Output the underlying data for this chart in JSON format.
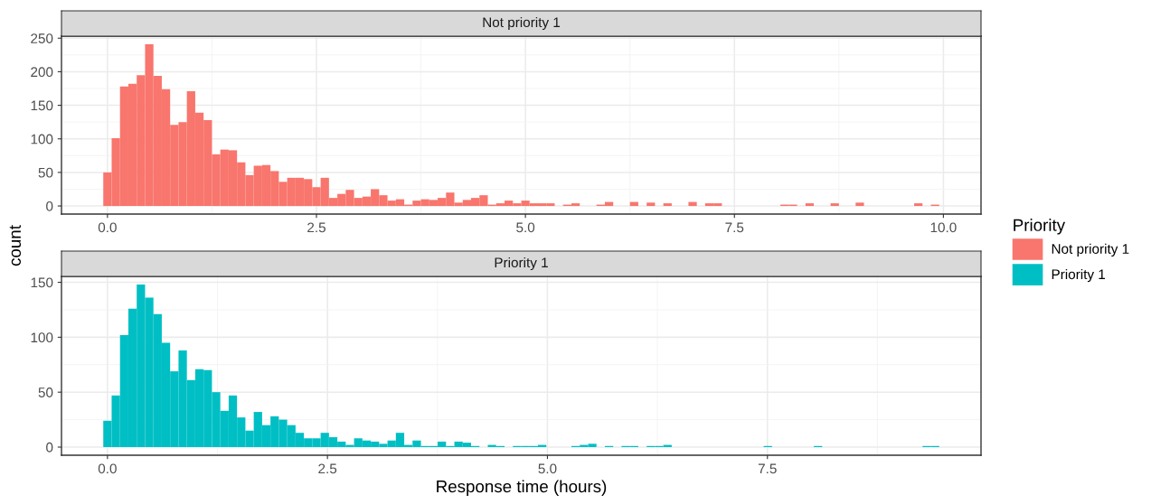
{
  "chart_data": [
    {
      "type": "histogram",
      "title": "Not priority 1",
      "ylabel": "count",
      "legend_title": "Priority",
      "legend": "right",
      "grid": true,
      "bins": [
        -0.05,
        0.05,
        0.15,
        0.25,
        0.35,
        0.45,
        0.55,
        0.65,
        0.75,
        0.85,
        0.95,
        1.05,
        1.15,
        1.25,
        1.35,
        1.45,
        1.55,
        1.65,
        1.75,
        1.85,
        1.95,
        2.05,
        2.15,
        2.25,
        2.35,
        2.45,
        2.55,
        2.65,
        2.75,
        2.85,
        2.95,
        3.05,
        3.15,
        3.25,
        3.35,
        3.45,
        3.55,
        3.65,
        3.75,
        3.85,
        3.95,
        4.05,
        4.15,
        4.25,
        4.35,
        4.45,
        4.55,
        4.65,
        4.75,
        4.85,
        4.95,
        5.05,
        5.15,
        5.25,
        5.35,
        5.45,
        5.55,
        5.65,
        5.75,
        5.85,
        5.95,
        6.05,
        6.15,
        6.25,
        6.35,
        6.45,
        6.55,
        6.65,
        6.75,
        6.85,
        6.95,
        7.05,
        7.15,
        7.25,
        7.35,
        7.45,
        7.55,
        7.65,
        7.75,
        7.85,
        7.95,
        8.05,
        8.15,
        8.25,
        8.35,
        8.45,
        8.55,
        8.65,
        8.75,
        8.85,
        8.95,
        9.05,
        9.15,
        9.25,
        9.35,
        9.45,
        9.55,
        9.65,
        9.75,
        9.85,
        9.95
      ],
      "series": [
        {
          "name": "Not priority 1",
          "color": "#f8766d",
          "values": [
            50,
            101,
            178,
            182,
            195,
            241,
            194,
            174,
            121,
            125,
            171,
            139,
            128,
            77,
            84,
            83,
            65,
            46,
            60,
            61,
            52,
            36,
            42,
            42,
            40,
            28,
            42,
            12,
            18,
            24,
            12,
            14,
            25,
            16,
            8,
            10,
            2,
            8,
            10,
            9,
            12,
            20,
            5,
            9,
            12,
            16,
            2,
            4,
            8,
            4,
            8,
            4,
            4,
            4,
            0,
            2,
            4,
            0,
            0,
            2,
            6,
            0,
            0,
            6,
            0,
            5,
            0,
            4,
            0,
            0,
            6,
            0,
            4,
            4,
            0,
            0,
            0,
            0,
            0,
            0,
            0,
            2,
            2,
            0,
            4,
            0,
            0,
            4,
            0,
            0,
            5,
            0,
            0,
            0,
            0,
            0,
            0,
            4,
            0,
            2
          ]
        }
      ],
      "xlim": [
        -0.55,
        10.45
      ],
      "ylim": [
        -12.05,
        253.05
      ],
      "xticks": [
        {
          "value": 0,
          "label": "0.0"
        },
        {
          "value": 2.5,
          "label": "2.5"
        },
        {
          "value": 5,
          "label": "5.0"
        },
        {
          "value": 7.5,
          "label": "7.5"
        },
        {
          "value": 10,
          "label": "10.0"
        }
      ],
      "yticks": [
        0,
        50,
        100,
        150,
        200,
        250
      ]
    },
    {
      "type": "histogram",
      "title": "Priority 1",
      "xlabel": "Response time (hours)",
      "legend": "right",
      "grid": true,
      "bins": [
        -0.0475,
        0.0475,
        0.1425,
        0.2375,
        0.3325,
        0.4275,
        0.5225,
        0.6175,
        0.7125,
        0.8075,
        0.9025,
        0.9975,
        1.0925,
        1.1875,
        1.2825,
        1.3775,
        1.4725,
        1.5675,
        1.6625,
        1.7575,
        1.8525,
        1.9475,
        2.0425,
        2.1375,
        2.2325,
        2.3275,
        2.4225,
        2.5175,
        2.6125,
        2.7075,
        2.8025,
        2.8975,
        2.9925,
        3.0875,
        3.1825,
        3.2775,
        3.3725,
        3.4675,
        3.5625,
        3.6575,
        3.7525,
        3.8475,
        3.9425,
        4.0375,
        4.1325,
        4.2275,
        4.3225,
        4.4175,
        4.5125,
        4.6075,
        4.7025,
        4.7975,
        4.8925,
        4.9875,
        5.0825,
        5.1775,
        5.2725,
        5.3675,
        5.4625,
        5.5575,
        5.6525,
        5.7475,
        5.8425,
        5.9375,
        6.0325,
        6.1275,
        6.2225,
        6.3175,
        6.4125,
        6.5075,
        6.6025,
        6.6975,
        6.7925,
        6.8875,
        6.9825,
        7.0775,
        7.1725,
        7.2675,
        7.3625,
        7.4575,
        7.5525,
        7.6475,
        7.7425,
        7.8375,
        7.9325,
        8.0275,
        8.1225,
        8.2175,
        8.3125,
        8.4075,
        8.5025,
        8.5975,
        8.6925,
        8.7875,
        8.8825,
        8.9775,
        9.0725,
        9.1675,
        9.2625,
        9.3575,
        9.4525
      ],
      "series": [
        {
          "name": "Priority 1",
          "color": "#00bfc4",
          "values": [
            24,
            47,
            102,
            126,
            148,
            136,
            121,
            95,
            69,
            88,
            61,
            71,
            70,
            50,
            33,
            47,
            27,
            15,
            32,
            20,
            28,
            25,
            20,
            13,
            8,
            8,
            13,
            9,
            5,
            2,
            8,
            6,
            5,
            3,
            6,
            13,
            2,
            6,
            1,
            1,
            5,
            1,
            5,
            4,
            1,
            0,
            2,
            1,
            0,
            1,
            1,
            1,
            2,
            0,
            0,
            0,
            1,
            2,
            3,
            0,
            1,
            0,
            1,
            1,
            0,
            1,
            1,
            2,
            0,
            0,
            0,
            0,
            0,
            0,
            0,
            0,
            0,
            0,
            0,
            1,
            0,
            0,
            0,
            0,
            0,
            1,
            0,
            0,
            0,
            0,
            0,
            0,
            0,
            0,
            0,
            0,
            0,
            0,
            1,
            1
          ]
        }
      ],
      "xlim": [
        -0.5225,
        9.9275
      ],
      "ylim": [
        -7.4,
        155.4
      ],
      "xticks": [
        {
          "value": 0,
          "label": "0.0"
        },
        {
          "value": 2.5,
          "label": "2.5"
        },
        {
          "value": 5,
          "label": "5.0"
        },
        {
          "value": 7.5,
          "label": "7.5"
        }
      ],
      "yticks": [
        0,
        50,
        100,
        150
      ]
    }
  ]
}
